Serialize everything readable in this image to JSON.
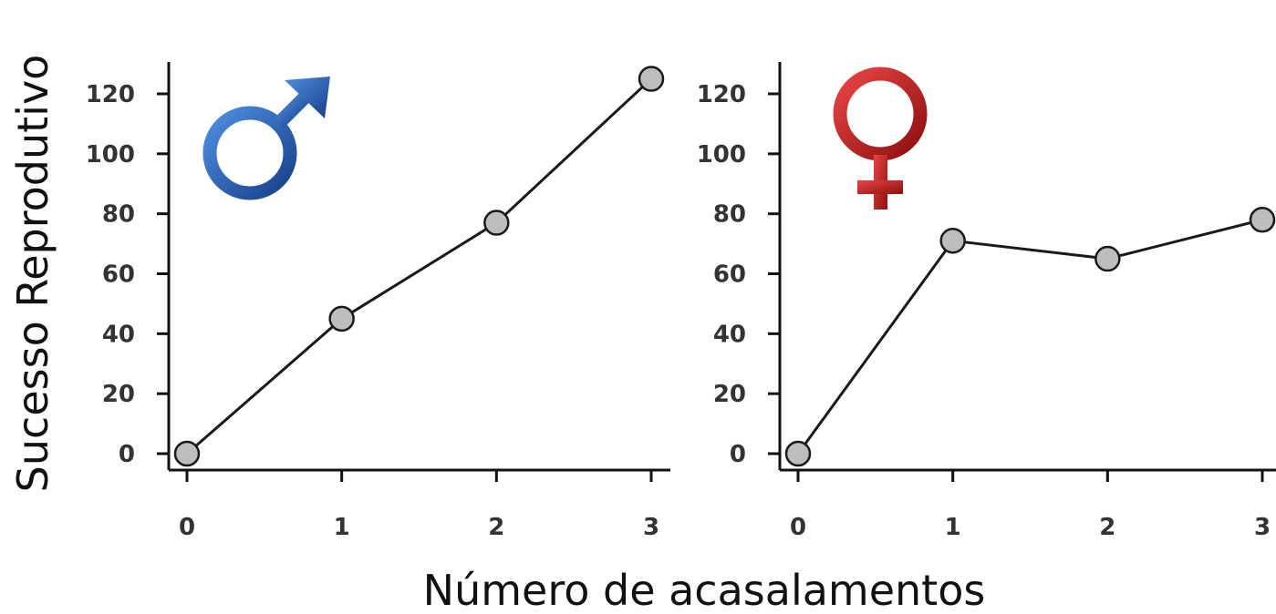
{
  "xlabel": "Número de acasalamentos",
  "ylabel": "Sucesso Reprodutivo",
  "colors": {
    "male_symbol": "#1f5fb5",
    "female_symbol": "#c41a1a",
    "marker_fill": "#bdbdbd",
    "line": "#1a1a1a"
  },
  "chart_data": [
    {
      "type": "line",
      "panel": "male",
      "symbol_icon": "male-symbol-icon",
      "x": [
        0,
        1,
        2,
        3
      ],
      "values": [
        0,
        45,
        77,
        125
      ],
      "xticks": [
        "0",
        "1",
        "2",
        "3"
      ],
      "yticks": [
        "0",
        "20",
        "40",
        "60",
        "80",
        "100",
        "120"
      ],
      "xlim": [
        0,
        3
      ],
      "ylim": [
        0,
        120
      ],
      "grid": false
    },
    {
      "type": "line",
      "panel": "female",
      "symbol_icon": "female-symbol-icon",
      "x": [
        0,
        1,
        2,
        3
      ],
      "values": [
        0,
        71,
        65,
        78
      ],
      "xticks": [
        "0",
        "1",
        "2",
        "3"
      ],
      "yticks": [
        "0",
        "20",
        "40",
        "60",
        "80",
        "100",
        "120"
      ],
      "xlim": [
        0,
        3
      ],
      "ylim": [
        0,
        120
      ],
      "grid": false
    }
  ]
}
